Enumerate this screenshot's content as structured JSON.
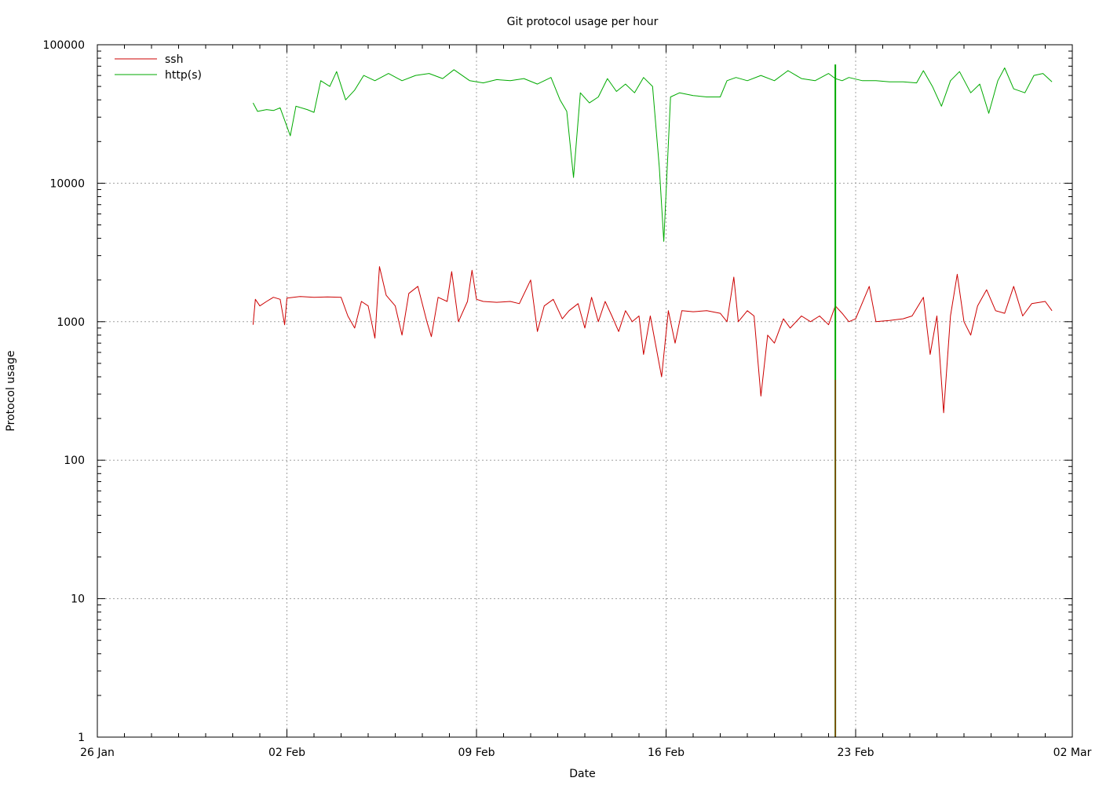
{
  "chart_data": {
    "type": "line",
    "title": "Git protocol usage per hour",
    "xlabel": "Date",
    "ylabel": "Protocol usage",
    "yscale": "log",
    "ylim": [
      1,
      100000
    ],
    "xlim": [
      "2016-01-26",
      "2016-03-02"
    ],
    "grid": true,
    "legend_position": "top-left",
    "y_ticks": [
      {
        "value": 1,
        "label": "1"
      },
      {
        "value": 10,
        "label": "10"
      },
      {
        "value": 100,
        "label": "100"
      },
      {
        "value": 1000,
        "label": "1000"
      },
      {
        "value": 10000,
        "label": "10000"
      },
      {
        "value": 100000,
        "label": "100000"
      }
    ],
    "x_ticks": [
      {
        "value": "2016-01-26",
        "label": "26 Jan"
      },
      {
        "value": "2016-02-02",
        "label": "02 Feb"
      },
      {
        "value": "2016-02-09",
        "label": "09 Feb"
      },
      {
        "value": "2016-02-16",
        "label": "16 Feb"
      },
      {
        "value": "2016-02-23",
        "label": "23 Feb"
      },
      {
        "value": "2016-03-02",
        "label": "02 Mar"
      }
    ],
    "series": [
      {
        "name": "ssh",
        "color": "#cc0000",
        "points": [
          [
            "2016-01-31 18:00",
            950
          ],
          [
            "2016-01-31 20:00",
            1450
          ],
          [
            "2016-02-01 00:00",
            1300
          ],
          [
            "2016-02-01 06:00",
            1400
          ],
          [
            "2016-02-01 12:00",
            1500
          ],
          [
            "2016-02-01 18:00",
            1450
          ],
          [
            "2016-02-01 22:00",
            950
          ],
          [
            "2016-02-02 00:00",
            1480
          ],
          [
            "2016-02-02 12:00",
            1520
          ],
          [
            "2016-02-03 00:00",
            1500
          ],
          [
            "2016-02-03 12:00",
            1510
          ],
          [
            "2016-02-04 00:00",
            1500
          ],
          [
            "2016-02-04 06:00",
            1100
          ],
          [
            "2016-02-04 12:00",
            900
          ],
          [
            "2016-02-04 18:00",
            1400
          ],
          [
            "2016-02-05 00:00",
            1300
          ],
          [
            "2016-02-05 06:00",
            760
          ],
          [
            "2016-02-05 10:00",
            2500
          ],
          [
            "2016-02-05 16:00",
            1550
          ],
          [
            "2016-02-06 00:00",
            1300
          ],
          [
            "2016-02-06 06:00",
            800
          ],
          [
            "2016-02-06 12:00",
            1600
          ],
          [
            "2016-02-06 20:00",
            1800
          ],
          [
            "2016-02-07 04:00",
            1000
          ],
          [
            "2016-02-07 08:00",
            780
          ],
          [
            "2016-02-07 14:00",
            1500
          ],
          [
            "2016-02-07 22:00",
            1400
          ],
          [
            "2016-02-08 02:00",
            2300
          ],
          [
            "2016-02-08 08:00",
            1000
          ],
          [
            "2016-02-08 16:00",
            1400
          ],
          [
            "2016-02-09 00:00",
            1450
          ],
          [
            "2016-02-08 20:00",
            2350
          ],
          [
            "2016-02-09 06:00",
            1400
          ],
          [
            "2016-02-09 18:00",
            1380
          ],
          [
            "2016-02-10 06:00",
            1400
          ],
          [
            "2016-02-10 14:00",
            1350
          ],
          [
            "2016-02-11 00:00",
            2000
          ],
          [
            "2016-02-11 06:00",
            850
          ],
          [
            "2016-02-11 12:00",
            1300
          ],
          [
            "2016-02-11 20:00",
            1450
          ],
          [
            "2016-02-12 04:00",
            1050
          ],
          [
            "2016-02-12 10:00",
            1200
          ],
          [
            "2016-02-12 18:00",
            1350
          ],
          [
            "2016-02-13 00:00",
            900
          ],
          [
            "2016-02-13 06:00",
            1500
          ],
          [
            "2016-02-13 12:00",
            1000
          ],
          [
            "2016-02-13 18:00",
            1400
          ],
          [
            "2016-02-14 00:00",
            1100
          ],
          [
            "2016-02-14 06:00",
            850
          ],
          [
            "2016-02-14 12:00",
            1200
          ],
          [
            "2016-02-14 18:00",
            1000
          ],
          [
            "2016-02-15 00:00",
            1100
          ],
          [
            "2016-02-15 04:00",
            580
          ],
          [
            "2016-02-15 10:00",
            1100
          ],
          [
            "2016-02-15 20:00",
            400
          ],
          [
            "2016-02-16 02:00",
            1200
          ],
          [
            "2016-02-16 08:00",
            700
          ],
          [
            "2016-02-16 14:00",
            1200
          ],
          [
            "2016-02-17 00:00",
            1180
          ],
          [
            "2016-02-17 12:00",
            1200
          ],
          [
            "2016-02-18 00:00",
            1150
          ],
          [
            "2016-02-18 06:00",
            1000
          ],
          [
            "2016-02-18 12:00",
            2100
          ],
          [
            "2016-02-18 16:00",
            1000
          ],
          [
            "2016-02-19 00:00",
            1200
          ],
          [
            "2016-02-19 06:00",
            1100
          ],
          [
            "2016-02-19 12:00",
            290
          ],
          [
            "2016-02-19 18:00",
            800
          ],
          [
            "2016-02-20 00:00",
            700
          ],
          [
            "2016-02-20 08:00",
            1050
          ],
          [
            "2016-02-20 14:00",
            900
          ],
          [
            "2016-02-21 00:00",
            1100
          ],
          [
            "2016-02-21 08:00",
            1000
          ],
          [
            "2016-02-21 16:00",
            1100
          ],
          [
            "2016-02-22 00:00",
            950
          ],
          [
            "2016-02-22 06:00",
            1300
          ],
          [
            "2016-02-22 12:00",
            1150
          ],
          [
            "2016-02-22 18:00",
            1000
          ],
          [
            "2016-02-23 00:00",
            1050
          ],
          [
            "2016-02-23 12:00",
            1800
          ],
          [
            "2016-02-23 18:00",
            1000
          ],
          [
            "2016-02-24 06:00",
            1020
          ],
          [
            "2016-02-24 18:00",
            1050
          ],
          [
            "2016-02-25 02:00",
            1100
          ],
          [
            "2016-02-25 12:00",
            1500
          ],
          [
            "2016-02-25 18:00",
            580
          ],
          [
            "2016-02-26 00:00",
            1100
          ],
          [
            "2016-02-26 06:00",
            220
          ],
          [
            "2016-02-26 12:00",
            1100
          ],
          [
            "2016-02-26 18:00",
            2200
          ],
          [
            "2016-02-27 00:00",
            1000
          ],
          [
            "2016-02-27 06:00",
            800
          ],
          [
            "2016-02-27 12:00",
            1300
          ],
          [
            "2016-02-27 20:00",
            1700
          ],
          [
            "2016-02-28 04:00",
            1200
          ],
          [
            "2016-02-28 12:00",
            1150
          ],
          [
            "2016-02-28 20:00",
            1800
          ],
          [
            "2016-02-29 04:00",
            1100
          ],
          [
            "2016-02-29 12:00",
            1350
          ],
          [
            "2016-03-01 00:00",
            1400
          ],
          [
            "2016-03-01 06:00",
            1200
          ]
        ]
      },
      {
        "name": "http(s)",
        "color": "#00aa00",
        "points": [
          [
            "2016-01-31 18:00",
            38000
          ],
          [
            "2016-01-31 22:00",
            33000
          ],
          [
            "2016-02-01 06:00",
            34000
          ],
          [
            "2016-02-01 12:00",
            33500
          ],
          [
            "2016-02-01 18:00",
            35000
          ],
          [
            "2016-02-02 03:00",
            22000
          ],
          [
            "2016-02-02 08:00",
            36000
          ],
          [
            "2016-02-02 18:00",
            34000
          ],
          [
            "2016-02-03 00:00",
            32500
          ],
          [
            "2016-02-03 06:00",
            55000
          ],
          [
            "2016-02-03 14:00",
            50000
          ],
          [
            "2016-02-03 20:00",
            64000
          ],
          [
            "2016-02-04 04:00",
            40000
          ],
          [
            "2016-02-04 12:00",
            47000
          ],
          [
            "2016-02-04 20:00",
            60000
          ],
          [
            "2016-02-05 06:00",
            55000
          ],
          [
            "2016-02-05 18:00",
            62000
          ],
          [
            "2016-02-06 06:00",
            55000
          ],
          [
            "2016-02-06 18:00",
            60000
          ],
          [
            "2016-02-07 06:00",
            62000
          ],
          [
            "2016-02-07 18:00",
            57000
          ],
          [
            "2016-02-08 04:00",
            66000
          ],
          [
            "2016-02-08 18:00",
            55000
          ],
          [
            "2016-02-09 06:00",
            53000
          ],
          [
            "2016-02-09 18:00",
            56000
          ],
          [
            "2016-02-10 06:00",
            55000
          ],
          [
            "2016-02-10 18:00",
            57000
          ],
          [
            "2016-02-11 06:00",
            52000
          ],
          [
            "2016-02-11 18:00",
            58000
          ],
          [
            "2016-02-12 02:00",
            40000
          ],
          [
            "2016-02-12 08:00",
            33000
          ],
          [
            "2016-02-12 14:00",
            11000
          ],
          [
            "2016-02-12 20:00",
            45000
          ],
          [
            "2016-02-13 04:00",
            38000
          ],
          [
            "2016-02-13 12:00",
            42000
          ],
          [
            "2016-02-13 20:00",
            57000
          ],
          [
            "2016-02-14 04:00",
            46000
          ],
          [
            "2016-02-14 12:00",
            52000
          ],
          [
            "2016-02-14 20:00",
            45000
          ],
          [
            "2016-02-15 04:00",
            58000
          ],
          [
            "2016-02-15 12:00",
            50000
          ],
          [
            "2016-02-15 18:00",
            13000
          ],
          [
            "2016-02-15 22:00",
            3800
          ],
          [
            "2016-02-16 04:00",
            42000
          ],
          [
            "2016-02-16 12:00",
            45000
          ],
          [
            "2016-02-17 00:00",
            43000
          ],
          [
            "2016-02-17 12:00",
            42000
          ],
          [
            "2016-02-18 00:00",
            42000
          ],
          [
            "2016-02-18 06:00",
            55000
          ],
          [
            "2016-02-18 14:00",
            58000
          ],
          [
            "2016-02-19 00:00",
            55000
          ],
          [
            "2016-02-19 12:00",
            60000
          ],
          [
            "2016-02-20 00:00",
            55000
          ],
          [
            "2016-02-20 12:00",
            65000
          ],
          [
            "2016-02-21 00:00",
            57000
          ],
          [
            "2016-02-21 12:00",
            55000
          ],
          [
            "2016-02-22 00:00",
            62000
          ],
          [
            "2016-02-22 06:00",
            57000
          ],
          [
            "2016-02-22 12:00",
            55000
          ],
          [
            "2016-02-22 18:00",
            58000
          ],
          [
            "2016-02-23 06:00",
            55000
          ],
          [
            "2016-02-23 18:00",
            55000
          ],
          [
            "2016-02-24 06:00",
            54000
          ],
          [
            "2016-02-24 18:00",
            54000
          ],
          [
            "2016-02-25 06:00",
            53000
          ],
          [
            "2016-02-25 12:00",
            65000
          ],
          [
            "2016-02-25 20:00",
            50000
          ],
          [
            "2016-02-26 04:00",
            36000
          ],
          [
            "2016-02-26 12:00",
            55000
          ],
          [
            "2016-02-26 20:00",
            64000
          ],
          [
            "2016-02-27 06:00",
            45000
          ],
          [
            "2016-02-27 14:00",
            52000
          ],
          [
            "2016-02-27 22:00",
            32000
          ],
          [
            "2016-02-28 06:00",
            55000
          ],
          [
            "2016-02-28 12:00",
            68000
          ],
          [
            "2016-02-28 20:00",
            48000
          ],
          [
            "2016-02-29 06:00",
            45000
          ],
          [
            "2016-02-29 14:00",
            60000
          ],
          [
            "2016-02-29 22:00",
            62000
          ],
          [
            "2016-03-01 06:00",
            54000
          ]
        ]
      }
    ],
    "annotations": [
      {
        "type": "vertical-spike",
        "x": "2016-02-22 06:00",
        "series": "http(s)",
        "from": 1,
        "to": 72000
      },
      {
        "type": "vertical-spike",
        "x": "2016-02-22 06:00",
        "series": "ssh",
        "from": 1,
        "to": 380
      }
    ]
  }
}
